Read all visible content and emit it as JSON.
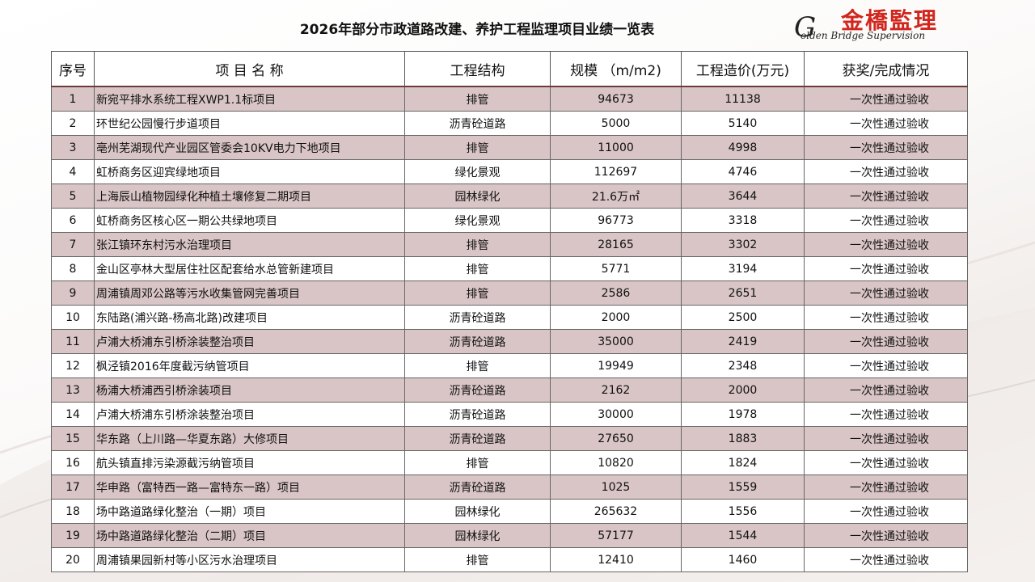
{
  "title": "2026年部分市政道路改建、养护工程监理项目业绩一览表",
  "logo": {
    "cn": "金橋監理",
    "en_initial": "G",
    "en": "olden Bridge Supervision"
  },
  "columns": [
    "序号",
    "项 目 名 称",
    "工程结构",
    "规模 （m/m2)",
    "工程造价(万元)",
    "获奖/完成情况"
  ],
  "rows": [
    {
      "no": "1",
      "name": "新宛平排水系统工程XWP1.1标项目",
      "structure": "排管",
      "scale": "94673",
      "cost": "11138",
      "status": "一次性通过验收"
    },
    {
      "no": "2",
      "name": "环世纪公园慢行步道项目",
      "structure": "沥青砼道路",
      "scale": "5000",
      "cost": "5140",
      "status": "一次性通过验收"
    },
    {
      "no": "3",
      "name": "亳州芜湖现代产业园区管委会10KV电力下地项目",
      "structure": "排管",
      "scale": "11000",
      "cost": "4998",
      "status": "一次性通过验收"
    },
    {
      "no": "4",
      "name": "虹桥商务区迎宾绿地项目",
      "structure": "绿化景观",
      "scale": "112697",
      "cost": "4746",
      "status": "一次性通过验收"
    },
    {
      "no": "5",
      "name": "上海辰山植物园绿化种植土壤修复二期项目",
      "structure": "园林绿化",
      "scale": "21.6万㎡",
      "cost": "3644",
      "status": "一次性通过验收"
    },
    {
      "no": "6",
      "name": "虹桥商务区核心区一期公共绿地项目",
      "structure": "绿化景观",
      "scale": "96773",
      "cost": "3318",
      "status": "一次性通过验收"
    },
    {
      "no": "7",
      "name": "张江镇环东村污水治理项目",
      "structure": "排管",
      "scale": "28165",
      "cost": "3302",
      "status": "一次性通过验收"
    },
    {
      "no": "8",
      "name": "金山区亭林大型居住社区配套给水总管新建项目",
      "structure": "排管",
      "scale": "5771",
      "cost": "3194",
      "status": "一次性通过验收"
    },
    {
      "no": "9",
      "name": "周浦镇周邓公路等污水收集管网完善项目",
      "structure": "排管",
      "scale": "2586",
      "cost": "2651",
      "status": "一次性通过验收"
    },
    {
      "no": "10",
      "name": "东陆路(浦兴路-杨高北路)改建项目",
      "structure": "沥青砼道路",
      "scale": "2000",
      "cost": "2500",
      "status": "一次性通过验收"
    },
    {
      "no": "11",
      "name": "卢浦大桥浦东引桥涂装整治项目",
      "structure": "沥青砼道路",
      "scale": "35000",
      "cost": "2419",
      "status": "一次性通过验收"
    },
    {
      "no": "12",
      "name": "枫泾镇2016年度截污纳管项目",
      "structure": "排管",
      "scale": "19949",
      "cost": "2348",
      "status": "一次性通过验收"
    },
    {
      "no": "13",
      "name": "杨浦大桥浦西引桥涂装项目",
      "structure": "沥青砼道路",
      "scale": "2162",
      "cost": "2000",
      "status": "一次性通过验收"
    },
    {
      "no": "14",
      "name": "卢浦大桥浦东引桥涂装整治项目",
      "structure": "沥青砼道路",
      "scale": "30000",
      "cost": "1978",
      "status": "一次性通过验收"
    },
    {
      "no": "15",
      "name": "华东路（上川路—华夏东路）大修项目",
      "structure": "沥青砼道路",
      "scale": "27650",
      "cost": "1883",
      "status": "一次性通过验收"
    },
    {
      "no": "16",
      "name": "航头镇直排污染源截污纳管项目",
      "structure": "排管",
      "scale": "10820",
      "cost": "1824",
      "status": "一次性通过验收"
    },
    {
      "no": "17",
      "name": "华申路（富特西一路—富特东一路）项目",
      "structure": "沥青砼道路",
      "scale": "1025",
      "cost": "1559",
      "status": "一次性通过验收"
    },
    {
      "no": "18",
      "name": "场中路道路绿化整治（一期）项目",
      "structure": "园林绿化",
      "scale": "265632",
      "cost": "1556",
      "status": "一次性通过验收"
    },
    {
      "no": "19",
      "name": "场中路道路绿化整治（二期）项目",
      "structure": "园林绿化",
      "scale": "57177",
      "cost": "1544",
      "status": "一次性通过验收"
    },
    {
      "no": "20",
      "name": "周浦镇果园新村等小区污水治理项目",
      "structure": "排管",
      "scale": "12410",
      "cost": "1460",
      "status": "一次性通过验收"
    }
  ]
}
